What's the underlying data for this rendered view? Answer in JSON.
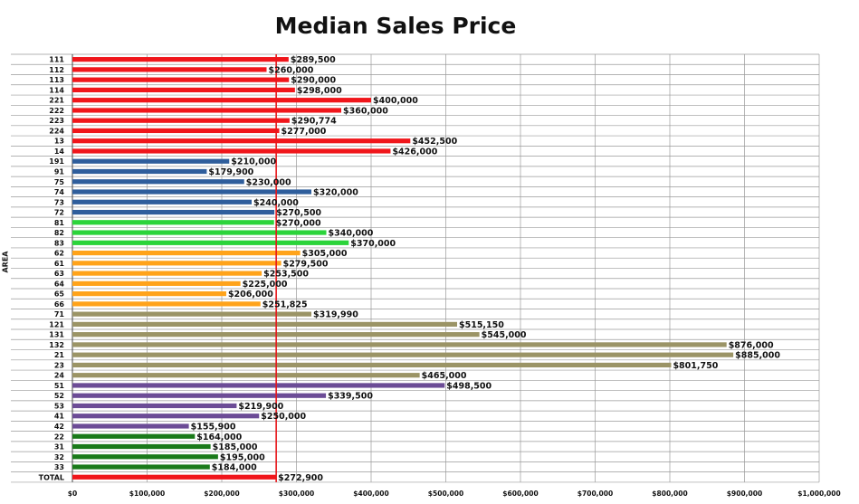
{
  "chart_data": {
    "type": "bar",
    "orientation": "horizontal",
    "title": "Median Sales Price",
    "ylabel": "AREA",
    "xlabel": "",
    "xlim": [
      0,
      1000000
    ],
    "x_ticks": [
      "$0",
      "$100,000",
      "$200,000",
      "$300,000",
      "$400,000",
      "$500,000",
      "$600,000",
      "$700,000",
      "$800,000",
      "$900,000",
      "$1,000,000"
    ],
    "grid": "vertical",
    "reference_line": {
      "value": 272900,
      "color": "#e8161b"
    },
    "categories": [
      "111",
      "112",
      "113",
      "114",
      "221",
      "222",
      "223",
      "224",
      "13",
      "14",
      "191",
      "91",
      "75",
      "74",
      "73",
      "72",
      "81",
      "82",
      "83",
      "62",
      "61",
      "63",
      "64",
      "65",
      "66",
      "71",
      "121",
      "131",
      "132",
      "21",
      "23",
      "24",
      "51",
      "52",
      "53",
      "41",
      "42",
      "22",
      "31",
      "32",
      "33",
      "TOTAL"
    ],
    "values": [
      289500,
      260000,
      290000,
      298000,
      400000,
      360000,
      290774,
      277000,
      452500,
      426000,
      210000,
      179900,
      230000,
      320000,
      240000,
      270500,
      270000,
      340000,
      370000,
      305000,
      279500,
      253500,
      225000,
      206000,
      251825,
      319990,
      515150,
      545000,
      876000,
      885000,
      801750,
      465000,
      498500,
      339500,
      219900,
      250000,
      155900,
      164000,
      185000,
      195000,
      184000,
      272900
    ],
    "value_labels": [
      "$289,500",
      "$260,000",
      "$290,000",
      "$298,000",
      "$400,000",
      "$360,000",
      "$290,774",
      "$277,000",
      "$452,500",
      "$426,000",
      "$210,000",
      "$179,900",
      "$230,000",
      "$320,000",
      "$240,000",
      "$270,500",
      "$270,000",
      "$340,000",
      "$370,000",
      "$305,000",
      "$279,500",
      "$253,500",
      "$225,000",
      "$206,000",
      "$251,825",
      "$319,990",
      "$515,150",
      "$545,000",
      "$876,000",
      "$885,000",
      "$801,750",
      "$465,000",
      "$498,500",
      "$339,500",
      "$219,900",
      "$250,000",
      "$155,900",
      "$164,000",
      "$185,000",
      "$195,000",
      "$184,000",
      "$272,900"
    ],
    "colors": [
      "#f0161b",
      "#f0161b",
      "#f0161b",
      "#f0161b",
      "#f0161b",
      "#f0161b",
      "#f0161b",
      "#f0161b",
      "#f0161b",
      "#f0161b",
      "#2f5e9c",
      "#2f5e9c",
      "#2f5e9c",
      "#2f5e9c",
      "#2f5e9c",
      "#2f5e9c",
      "#2bd43a",
      "#2bd43a",
      "#2bd43a",
      "#ffa31a",
      "#ffa31a",
      "#ffa31a",
      "#ffa31a",
      "#ffa31a",
      "#ffa31a",
      "#9b9466",
      "#9b9466",
      "#9b9466",
      "#9b9466",
      "#9b9466",
      "#9b9466",
      "#9b9466",
      "#6c4c96",
      "#6c4c96",
      "#6c4c96",
      "#6c4c96",
      "#6c4c96",
      "#1a7a1a",
      "#1a7a1a",
      "#1a7a1a",
      "#1a7a1a",
      "#f0161b"
    ]
  }
}
